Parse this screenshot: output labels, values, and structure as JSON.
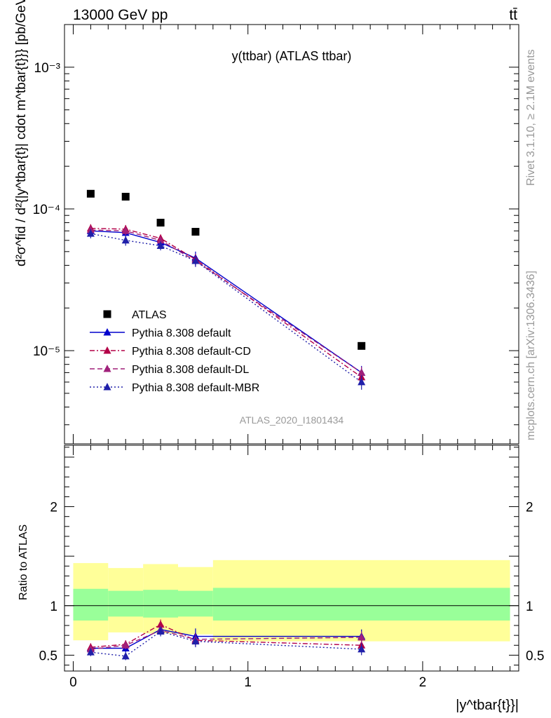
{
  "header": {
    "energy_label": "13000 GeV pp",
    "process_label": "tt̄"
  },
  "side": {
    "rivet_label": "Rivet 3.1.10, ≥ 2.1M events",
    "mcplots_label": "mcplots.cern.ch [arXiv:1306.3436]"
  },
  "chart_data": [
    {
      "type": "line",
      "title": "y(ttbar) (ATLAS ttbar)",
      "analysis_label": "ATLAS_2020_I1801434",
      "ylabel": "d²σ^fid / d²{|y^tbar{t}| cdot m^tbar{t}}} [pb/GeV]",
      "yscale": "log",
      "ylim": [
        2.2e-06,
        0.002
      ],
      "xlim": [
        -0.05,
        2.55
      ],
      "y_ticks": [
        1e-05,
        0.0001,
        0.001
      ],
      "y_tick_labels": [
        "10⁻⁵",
        "10⁻⁴",
        "10⁻³"
      ],
      "x": [
        0.1,
        0.3,
        0.5,
        0.7,
        1.65
      ],
      "x_bins": [
        [
          0.0,
          0.2
        ],
        [
          0.2,
          0.4
        ],
        [
          0.4,
          0.6
        ],
        [
          0.6,
          0.8
        ],
        [
          0.8,
          2.5
        ]
      ],
      "legend_position": "lower-left",
      "series": [
        {
          "name": "ATLAS",
          "marker": "square",
          "color": "#000000",
          "style": "none",
          "values": [
            0.000128,
            0.000122,
            8e-05,
            6.9e-05,
            1.08e-05
          ]
        },
        {
          "name": "Pythia 8.308 default",
          "marker": "triangle",
          "color": "#0000cc",
          "style": "solid",
          "values": [
            7e-05,
            6.8e-05,
            5.8e-05,
            4.5e-05,
            7e-06
          ],
          "err": [
            5e-06,
            5e-06,
            4e-06,
            5e-06,
            8e-07
          ]
        },
        {
          "name": "Pythia 8.308 default-CD",
          "marker": "triangle",
          "color": "#b30047",
          "style": "dashdot",
          "values": [
            7.3e-05,
            7.2e-05,
            6.2e-05,
            4.4e-05,
            6.5e-06
          ],
          "err": [
            5e-06,
            5e-06,
            4e-06,
            4e-06,
            7e-07
          ]
        },
        {
          "name": "Pythia 8.308 default-DL",
          "marker": "triangle",
          "color": "#a0207a",
          "style": "dashed",
          "values": [
            7.1e-05,
            7e-05,
            6e-05,
            4.3e-05,
            7e-06
          ],
          "err": [
            5e-06,
            5e-06,
            4e-06,
            4e-06,
            7e-07
          ]
        },
        {
          "name": "Pythia 8.308 default-MBR",
          "marker": "triangle",
          "color": "#2020aa",
          "style": "dotted",
          "values": [
            6.7e-05,
            6e-05,
            5.5e-05,
            4.3e-05,
            6e-06
          ],
          "err": [
            5e-06,
            5e-06,
            4e-06,
            4e-06,
            7e-07
          ]
        }
      ]
    },
    {
      "type": "line",
      "title": "",
      "ylabel": "Ratio to ATLAS",
      "xlabel": "|y^tbar{t}}|",
      "ylim": [
        0.34,
        2.62
      ],
      "xlim": [
        -0.05,
        2.55
      ],
      "y_ticks": [
        0.5,
        1,
        2
      ],
      "y_tick_labels": [
        "0.5",
        "1",
        "2"
      ],
      "x_ticks": [
        0,
        1,
        2
      ],
      "x_tick_labels": [
        "0",
        "1",
        "2"
      ],
      "x": [
        0.1,
        0.3,
        0.5,
        0.7,
        1.65
      ],
      "bands": {
        "x_bins": [
          [
            0.0,
            0.2
          ],
          [
            0.2,
            0.4
          ],
          [
            0.4,
            0.6
          ],
          [
            0.6,
            0.8
          ],
          [
            0.8,
            2.5
          ]
        ],
        "outer_color": "#ffff99",
        "inner_color": "#99ff99",
        "outer_lo": [
          0.65,
          0.73,
          0.72,
          0.71,
          0.64
        ],
        "outer_hi": [
          1.43,
          1.38,
          1.42,
          1.39,
          1.46
        ],
        "inner_lo": [
          0.85,
          0.89,
          0.88,
          0.89,
          0.85
        ],
        "inner_hi": [
          1.17,
          1.15,
          1.16,
          1.15,
          1.18
        ]
      },
      "series": [
        {
          "name": "Pythia 8.308 default",
          "color": "#0000cc",
          "style": "solid",
          "values": [
            0.57,
            0.57,
            0.76,
            0.69,
            0.69
          ],
          "err": [
            0.04,
            0.04,
            0.04,
            0.08,
            0.07
          ]
        },
        {
          "name": "Pythia 8.308 default-CD",
          "color": "#b30047",
          "style": "dashdot",
          "values": [
            0.58,
            0.61,
            0.81,
            0.65,
            0.6
          ],
          "err": [
            0.04,
            0.04,
            0.05,
            0.06,
            0.06
          ]
        },
        {
          "name": "Pythia 8.308 default-DL",
          "color": "#a0207a",
          "style": "dashed",
          "values": [
            0.56,
            0.6,
            0.75,
            0.66,
            0.68
          ],
          "err": [
            0.04,
            0.04,
            0.05,
            0.06,
            0.06
          ]
        },
        {
          "name": "Pythia 8.308 default-MBR",
          "color": "#2020aa",
          "style": "dotted",
          "values": [
            0.53,
            0.49,
            0.74,
            0.64,
            0.56
          ],
          "err": [
            0.04,
            0.04,
            0.05,
            0.06,
            0.06
          ]
        }
      ]
    }
  ]
}
